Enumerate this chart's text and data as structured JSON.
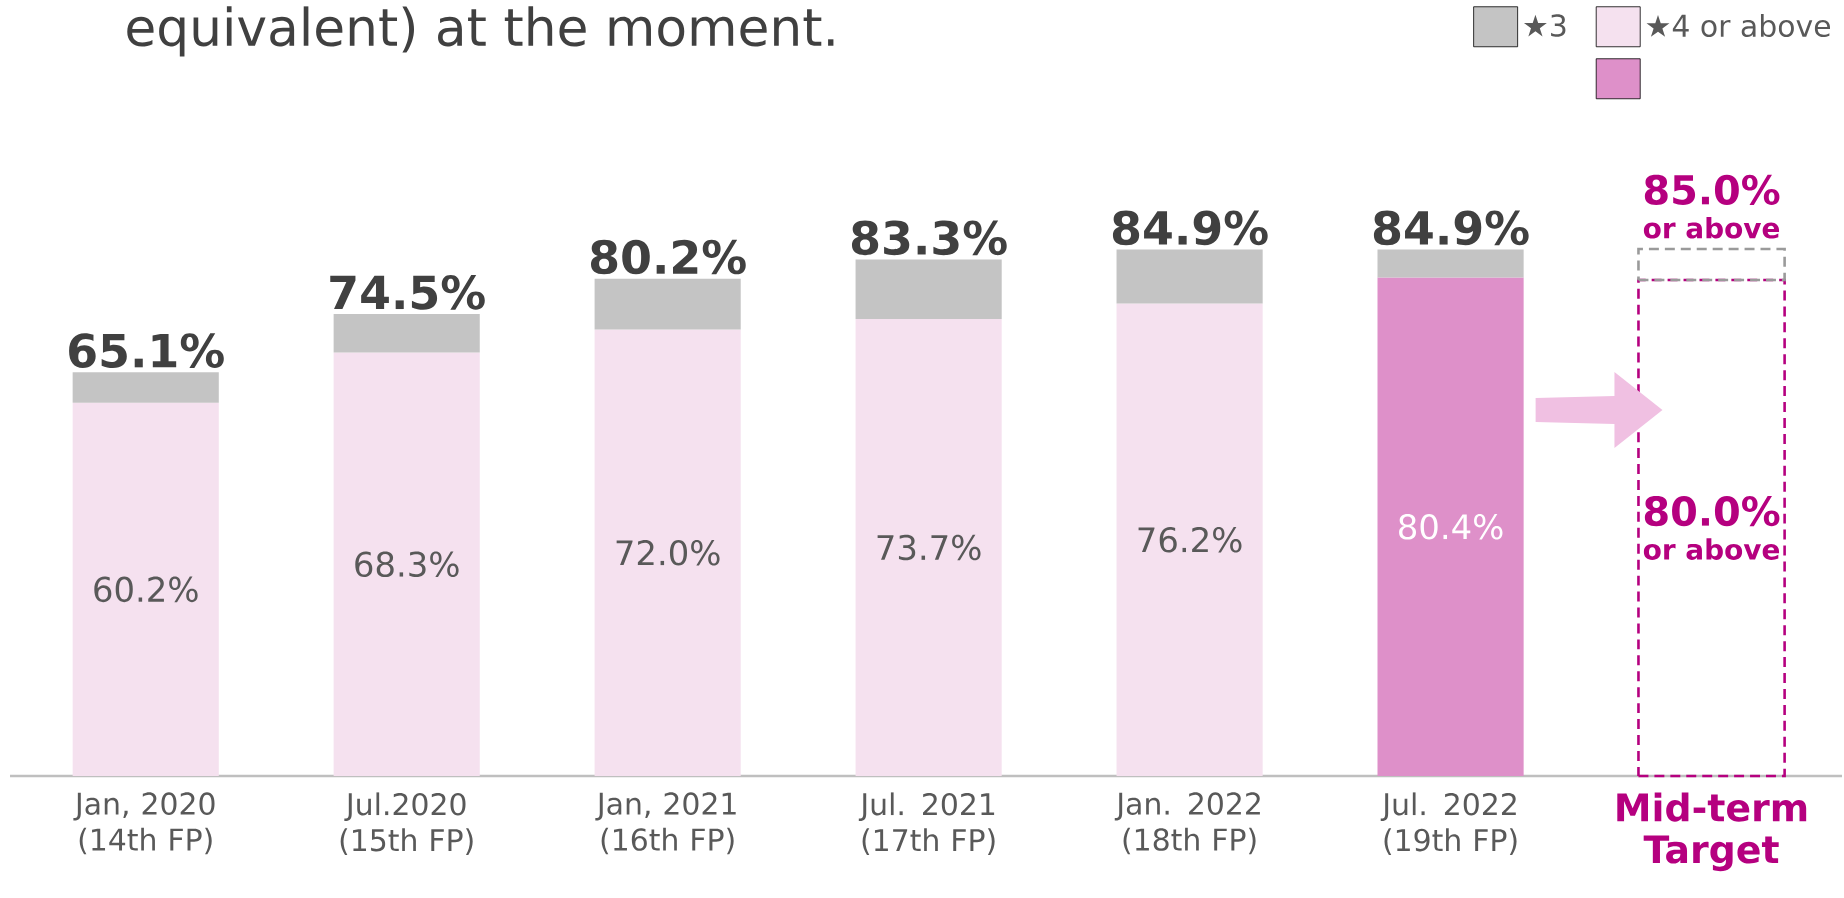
{
  "chart_data": {
    "type": "bar",
    "stacked": true,
    "title": "equivalent) at the moment.",
    "categories": [
      "Jan, 2020 (14th FP)",
      "Jul.2020 (15th FP)",
      "Jan, 2021 (16th FP)",
      "Jul. 2021 (17th FP)",
      "Jan. 2022 (18th FP)",
      "Jul. 2022 (19th FP)",
      "Mid-term Target"
    ],
    "series": [
      {
        "name": "★4 or above",
        "color": "#f5e1ef",
        "colors": [
          "#f5e1ef",
          "#f5e1ef",
          "#f5e1ef",
          "#f5e1ef",
          "#f5e1ef",
          "#de90c9",
          "#f5e1ef"
        ],
        "values": [
          60.2,
          68.3,
          72.0,
          73.7,
          76.2,
          80.4,
          null
        ],
        "value_labels": [
          "60.2%",
          "68.3%",
          "72.0%",
          "73.7%",
          "76.2%",
          "80.4%",
          null
        ]
      },
      {
        "name": "★3",
        "color": "#c4c4c4",
        "values": [
          4.9,
          6.2,
          8.2,
          9.6,
          8.7,
          4.5,
          null
        ]
      },
      {
        "color": "#b5007f",
        "line_style": "dashed",
        "values": [
          null,
          null,
          null,
          null,
          null,
          null,
          80.0
        ]
      },
      {
        "color": "#9a9a9a",
        "line_style": "dashed",
        "values": [
          null,
          null,
          null,
          null,
          null,
          null,
          5.0
        ]
      }
    ],
    "totals": [
      "65.1%",
      "74.5%",
      "80.2%",
      "83.3%",
      "84.9%",
      "84.9%",
      null
    ],
    "legend": "top right",
    "annotations": [
      "85.0%",
      "or above",
      "80.0%",
      "or above"
    ]
  }
}
